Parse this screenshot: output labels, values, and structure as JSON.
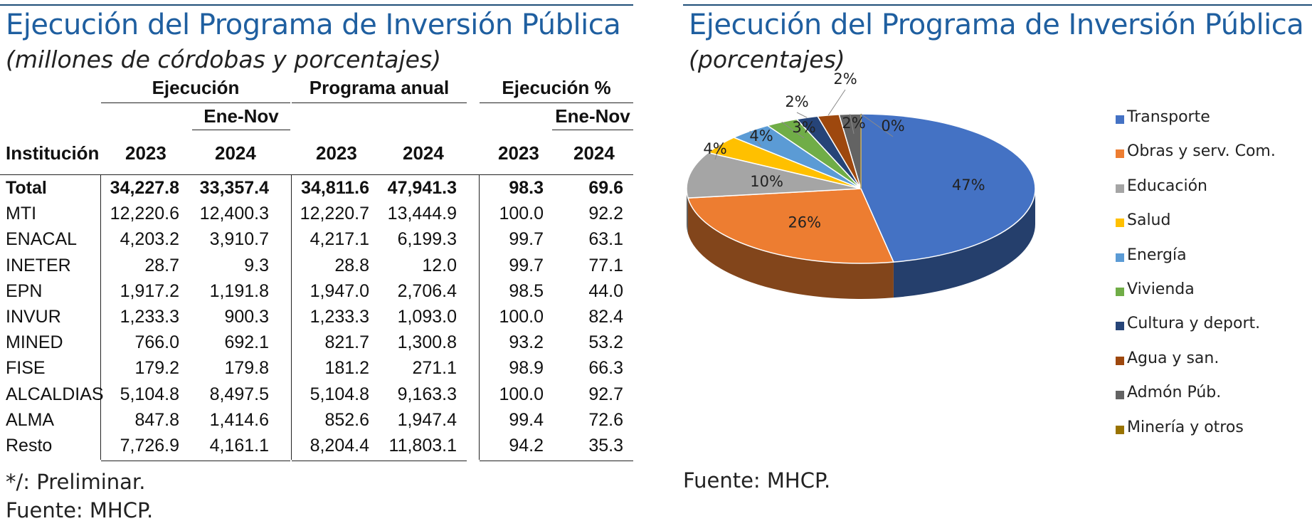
{
  "left": {
    "title": "Ejecución del Programa de Inversión Pública",
    "subtitle": "(millones de córdobas y porcentajes)",
    "groups": {
      "ejecucion": "Ejecución",
      "programa": "Programa anual",
      "ejec_pct": "Ejecución %",
      "ene_nov": "Ene-Nov"
    },
    "col_headers": {
      "institucion": "Institución",
      "y2023": "2023",
      "y2024": "2024"
    },
    "rows": [
      {
        "name": "Total",
        "e23": "34,227.8",
        "e24": "33,357.4",
        "p23": "34,811.6",
        "p24": "47,941.3",
        "x23": "98.3",
        "x24": "69.6"
      },
      {
        "name": "MTI",
        "e23": "12,220.6",
        "e24": "12,400.3",
        "p23": "12,220.7",
        "p24": "13,444.9",
        "x23": "100.0",
        "x24": "92.2"
      },
      {
        "name": "ENACAL",
        "e23": "4,203.2",
        "e24": "3,910.7",
        "p23": "4,217.1",
        "p24": "6,199.3",
        "x23": "99.7",
        "x24": "63.1"
      },
      {
        "name": "INETER",
        "e23": "28.7",
        "e24": "9.3",
        "p23": "28.8",
        "p24": "12.0",
        "x23": "99.7",
        "x24": "77.1"
      },
      {
        "name": "EPN",
        "e23": "1,917.2",
        "e24": "1,191.8",
        "p23": "1,947.0",
        "p24": "2,706.4",
        "x23": "98.5",
        "x24": "44.0"
      },
      {
        "name": "INVUR",
        "e23": "1,233.3",
        "e24": "900.3",
        "p23": "1,233.3",
        "p24": "1,093.0",
        "x23": "100.0",
        "x24": "82.4"
      },
      {
        "name": "MINED",
        "e23": "766.0",
        "e24": "692.1",
        "p23": "821.7",
        "p24": "1,300.8",
        "x23": "93.2",
        "x24": "53.2"
      },
      {
        "name": "FISE",
        "e23": "179.2",
        "e24": "179.8",
        "p23": "181.2",
        "p24": "271.1",
        "x23": "98.9",
        "x24": "66.3"
      },
      {
        "name": "ALCALDIAS",
        "e23": "5,104.8",
        "e24": "8,497.5",
        "p23": "5,104.8",
        "p24": "9,163.3",
        "x23": "100.0",
        "x24": "92.7"
      },
      {
        "name": "ALMA",
        "e23": "847.8",
        "e24": "1,414.6",
        "p23": "852.6",
        "p24": "1,947.4",
        "x23": "99.4",
        "x24": "72.6"
      },
      {
        "name": "Resto",
        "e23": "7,726.9",
        "e24": "4,161.1",
        "p23": "8,204.4",
        "p24": "11,803.1",
        "x23": "94.2",
        "x24": "35.3"
      }
    ],
    "note": "*/: Preliminar.",
    "source": "Fuente: MHCP."
  },
  "right": {
    "title": "Ejecución del Programa de Inversión Pública",
    "subtitle": "(porcentajes)",
    "source": "Fuente: MHCP."
  },
  "chart_data": {
    "type": "pie",
    "title": "Ejecución del Programa de Inversión Pública",
    "subtitle": "(porcentajes)",
    "legend_position": "right",
    "categories": [
      "Transporte",
      "Obras y serv. Com.",
      "Educación",
      "Salud",
      "Energía",
      "Vivienda",
      "Cultura y deport.",
      "Agua y san.",
      "Admón Púb.",
      "Minería y otros"
    ],
    "values": [
      47,
      26,
      10,
      4,
      4,
      3,
      2,
      2,
      2,
      0
    ],
    "labels": [
      "47%",
      "26%",
      "10%",
      "4%",
      "4%",
      "3%",
      "2%",
      "2%",
      "2%",
      "0%"
    ],
    "colors": [
      "#4472c4",
      "#ed7d31",
      "#a5a5a5",
      "#ffc000",
      "#5b9bd5",
      "#70ad47",
      "#264478",
      "#9e480e",
      "#636363",
      "#997300"
    ]
  }
}
